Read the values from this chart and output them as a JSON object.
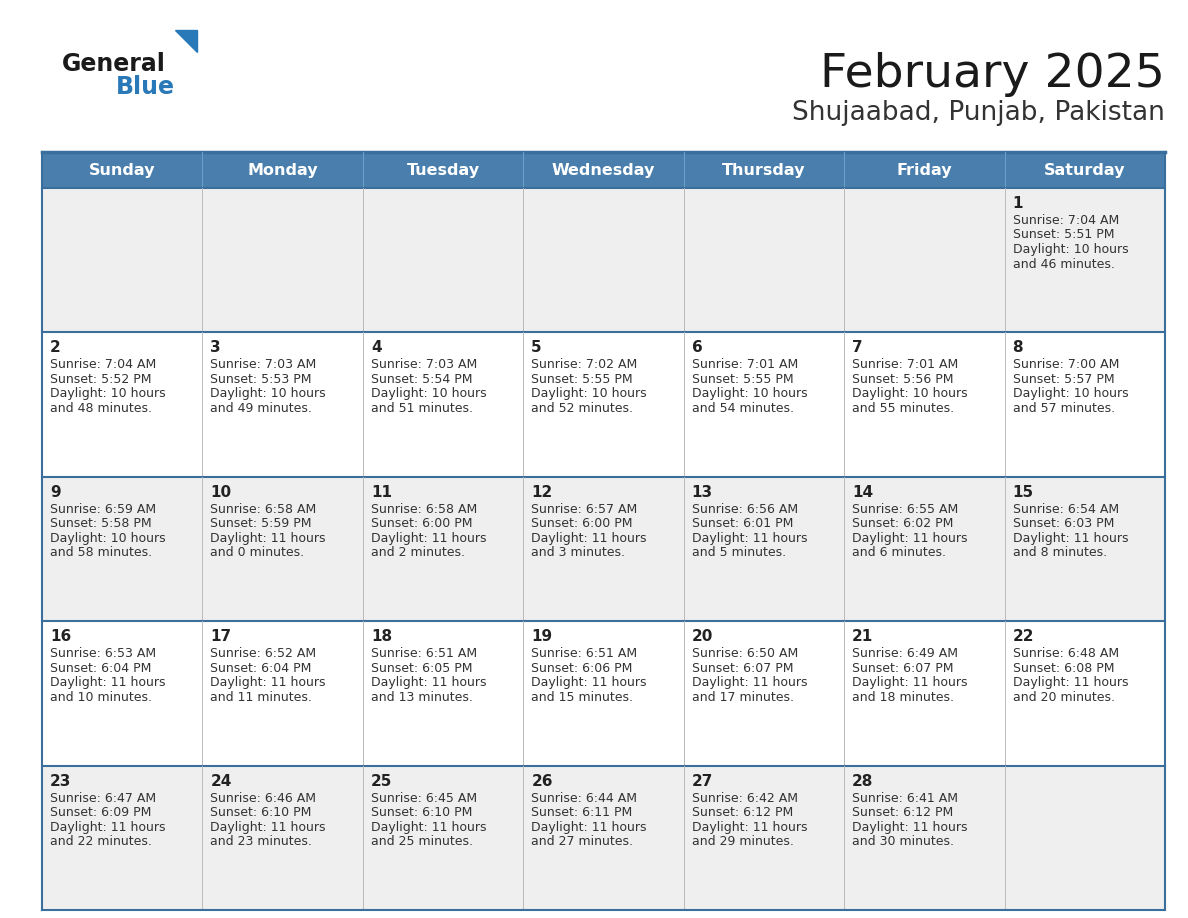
{
  "title": "February 2025",
  "subtitle": "Shujaabad, Punjab, Pakistan",
  "days_of_week": [
    "Sunday",
    "Monday",
    "Tuesday",
    "Wednesday",
    "Thursday",
    "Friday",
    "Saturday"
  ],
  "header_bg": "#4a7fad",
  "header_text": "#ffffff",
  "row_bg_odd": "#efefef",
  "row_bg_even": "#ffffff",
  "border_color": "#3a6f9d",
  "day_number_color": "#222222",
  "cell_text_color": "#333333",
  "title_color": "#1a1a1a",
  "subtitle_color": "#333333",
  "logo_general_color": "#1a1a1a",
  "logo_blue_color": "#2979b8",
  "calendar": [
    [
      null,
      null,
      null,
      null,
      null,
      null,
      {
        "day": 1,
        "sunrise": "7:04 AM",
        "sunset": "5:51 PM",
        "daylight_line1": "Daylight: 10 hours",
        "daylight_line2": "and 46 minutes."
      }
    ],
    [
      {
        "day": 2,
        "sunrise": "7:04 AM",
        "sunset": "5:52 PM",
        "daylight_line1": "Daylight: 10 hours",
        "daylight_line2": "and 48 minutes."
      },
      {
        "day": 3,
        "sunrise": "7:03 AM",
        "sunset": "5:53 PM",
        "daylight_line1": "Daylight: 10 hours",
        "daylight_line2": "and 49 minutes."
      },
      {
        "day": 4,
        "sunrise": "7:03 AM",
        "sunset": "5:54 PM",
        "daylight_line1": "Daylight: 10 hours",
        "daylight_line2": "and 51 minutes."
      },
      {
        "day": 5,
        "sunrise": "7:02 AM",
        "sunset": "5:55 PM",
        "daylight_line1": "Daylight: 10 hours",
        "daylight_line2": "and 52 minutes."
      },
      {
        "day": 6,
        "sunrise": "7:01 AM",
        "sunset": "5:55 PM",
        "daylight_line1": "Daylight: 10 hours",
        "daylight_line2": "and 54 minutes."
      },
      {
        "day": 7,
        "sunrise": "7:01 AM",
        "sunset": "5:56 PM",
        "daylight_line1": "Daylight: 10 hours",
        "daylight_line2": "and 55 minutes."
      },
      {
        "day": 8,
        "sunrise": "7:00 AM",
        "sunset": "5:57 PM",
        "daylight_line1": "Daylight: 10 hours",
        "daylight_line2": "and 57 minutes."
      }
    ],
    [
      {
        "day": 9,
        "sunrise": "6:59 AM",
        "sunset": "5:58 PM",
        "daylight_line1": "Daylight: 10 hours",
        "daylight_line2": "and 58 minutes."
      },
      {
        "day": 10,
        "sunrise": "6:58 AM",
        "sunset": "5:59 PM",
        "daylight_line1": "Daylight: 11 hours",
        "daylight_line2": "and 0 minutes."
      },
      {
        "day": 11,
        "sunrise": "6:58 AM",
        "sunset": "6:00 PM",
        "daylight_line1": "Daylight: 11 hours",
        "daylight_line2": "and 2 minutes."
      },
      {
        "day": 12,
        "sunrise": "6:57 AM",
        "sunset": "6:00 PM",
        "daylight_line1": "Daylight: 11 hours",
        "daylight_line2": "and 3 minutes."
      },
      {
        "day": 13,
        "sunrise": "6:56 AM",
        "sunset": "6:01 PM",
        "daylight_line1": "Daylight: 11 hours",
        "daylight_line2": "and 5 minutes."
      },
      {
        "day": 14,
        "sunrise": "6:55 AM",
        "sunset": "6:02 PM",
        "daylight_line1": "Daylight: 11 hours",
        "daylight_line2": "and 6 minutes."
      },
      {
        "day": 15,
        "sunrise": "6:54 AM",
        "sunset": "6:03 PM",
        "daylight_line1": "Daylight: 11 hours",
        "daylight_line2": "and 8 minutes."
      }
    ],
    [
      {
        "day": 16,
        "sunrise": "6:53 AM",
        "sunset": "6:04 PM",
        "daylight_line1": "Daylight: 11 hours",
        "daylight_line2": "and 10 minutes."
      },
      {
        "day": 17,
        "sunrise": "6:52 AM",
        "sunset": "6:04 PM",
        "daylight_line1": "Daylight: 11 hours",
        "daylight_line2": "and 11 minutes."
      },
      {
        "day": 18,
        "sunrise": "6:51 AM",
        "sunset": "6:05 PM",
        "daylight_line1": "Daylight: 11 hours",
        "daylight_line2": "and 13 minutes."
      },
      {
        "day": 19,
        "sunrise": "6:51 AM",
        "sunset": "6:06 PM",
        "daylight_line1": "Daylight: 11 hours",
        "daylight_line2": "and 15 minutes."
      },
      {
        "day": 20,
        "sunrise": "6:50 AM",
        "sunset": "6:07 PM",
        "daylight_line1": "Daylight: 11 hours",
        "daylight_line2": "and 17 minutes."
      },
      {
        "day": 21,
        "sunrise": "6:49 AM",
        "sunset": "6:07 PM",
        "daylight_line1": "Daylight: 11 hours",
        "daylight_line2": "and 18 minutes."
      },
      {
        "day": 22,
        "sunrise": "6:48 AM",
        "sunset": "6:08 PM",
        "daylight_line1": "Daylight: 11 hours",
        "daylight_line2": "and 20 minutes."
      }
    ],
    [
      {
        "day": 23,
        "sunrise": "6:47 AM",
        "sunset": "6:09 PM",
        "daylight_line1": "Daylight: 11 hours",
        "daylight_line2": "and 22 minutes."
      },
      {
        "day": 24,
        "sunrise": "6:46 AM",
        "sunset": "6:10 PM",
        "daylight_line1": "Daylight: 11 hours",
        "daylight_line2": "and 23 minutes."
      },
      {
        "day": 25,
        "sunrise": "6:45 AM",
        "sunset": "6:10 PM",
        "daylight_line1": "Daylight: 11 hours",
        "daylight_line2": "and 25 minutes."
      },
      {
        "day": 26,
        "sunrise": "6:44 AM",
        "sunset": "6:11 PM",
        "daylight_line1": "Daylight: 11 hours",
        "daylight_line2": "and 27 minutes."
      },
      {
        "day": 27,
        "sunrise": "6:42 AM",
        "sunset": "6:12 PM",
        "daylight_line1": "Daylight: 11 hours",
        "daylight_line2": "and 29 minutes."
      },
      {
        "day": 28,
        "sunrise": "6:41 AM",
        "sunset": "6:12 PM",
        "daylight_line1": "Daylight: 11 hours",
        "daylight_line2": "and 30 minutes."
      },
      null
    ]
  ]
}
